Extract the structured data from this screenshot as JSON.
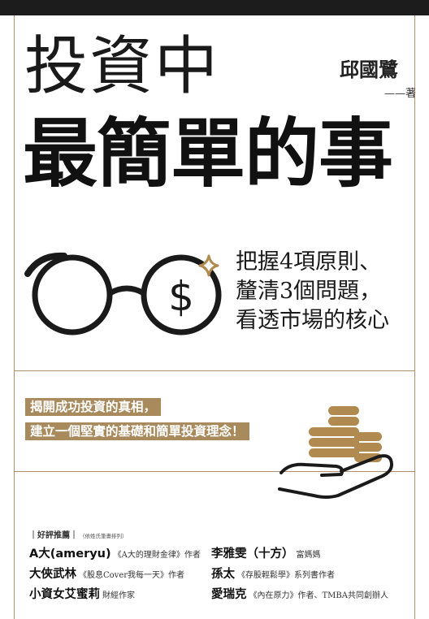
{
  "cover": {
    "title_line1": "投資中",
    "title_line2": "最簡單的事",
    "author": "邱國鷺",
    "author_role": "——著",
    "subtitle": [
      "把握4項原則、",
      "釐清3個問題，",
      "看透市場的核心"
    ],
    "tagline": [
      "揭開成功投資的真相，",
      "建立一個堅實的基礎和簡單投資理念！"
    ],
    "recommendations": {
      "header": "｜好評推薦｜",
      "header_note": "（依姓氏筆畫排列）",
      "left": [
        {
          "name": "A大(ameryu)",
          "desc": "《A大的理財金律》作者"
        },
        {
          "name": "大俠武林",
          "desc": "《股息Cover我每一天》作者"
        },
        {
          "name": "小資女艾蜜莉",
          "desc": "財經作家"
        }
      ],
      "right": [
        {
          "name": "李雅雯（十方）",
          "desc": "富媽媽"
        },
        {
          "name": "孫太",
          "desc": "《存股輕鬆學》系列書作者"
        },
        {
          "name": "愛瑞克",
          "desc": "《內在原力》作者、TMBA共同創辦人"
        }
      ]
    },
    "colors": {
      "accent_gold": "#a88a5c",
      "frame_line": "#b0906a",
      "top_bar": "#1c1c1c"
    },
    "icons": [
      "glasses-dollar-icon",
      "sparkle-icon",
      "coins-in-hand-icon"
    ]
  }
}
